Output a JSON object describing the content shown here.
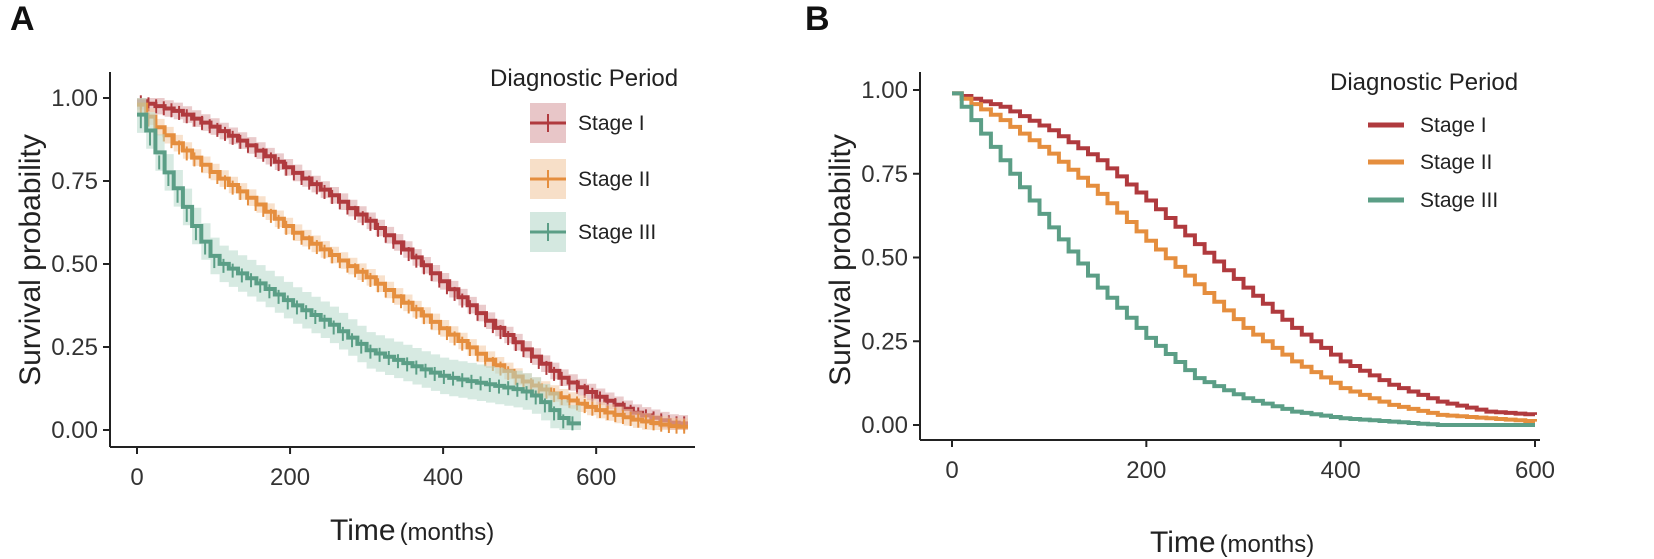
{
  "chart_data": [
    {
      "panel_label": "A",
      "type": "line",
      "subtype": "kaplan-meier-with-ci-and-censor-marks",
      "xlabel": "Time",
      "xlabel_unit": "(months)",
      "ylabel": "Survival probability",
      "xlim": [
        0,
        720
      ],
      "ylim": [
        0,
        1
      ],
      "xticks": [
        0,
        200,
        400,
        600
      ],
      "xtick_labels": [
        "0",
        "200",
        "400",
        "600"
      ],
      "yticks": [
        0,
        0.25,
        0.5,
        0.75,
        1.0
      ],
      "ytick_labels": [
        "0.00",
        "0.25",
        "0.50",
        "0.75",
        "1.00"
      ],
      "legend": {
        "title": "Diagnostic Period",
        "placement": "top-right"
      },
      "series": [
        {
          "name": "Stage I",
          "color": "#b03a3e",
          "band_color": "#d9a0a3",
          "end": 720,
          "x": [
            0,
            50,
            100,
            150,
            200,
            250,
            300,
            350,
            400,
            450,
            500,
            550,
            600,
            650,
            700,
            720
          ],
          "y": [
            0.99,
            0.96,
            0.91,
            0.85,
            0.78,
            0.71,
            0.63,
            0.54,
            0.44,
            0.34,
            0.25,
            0.16,
            0.1,
            0.05,
            0.02,
            0.02
          ]
        },
        {
          "name": "Stage II",
          "color": "#e58e3e",
          "band_color": "#f2c9a3",
          "end": 720,
          "x": [
            0,
            20,
            50,
            100,
            150,
            200,
            250,
            300,
            350,
            400,
            450,
            500,
            550,
            600,
            650,
            700,
            720
          ],
          "y": [
            0.98,
            0.92,
            0.86,
            0.77,
            0.69,
            0.6,
            0.53,
            0.46,
            0.38,
            0.3,
            0.22,
            0.15,
            0.1,
            0.06,
            0.03,
            0.01,
            0.01
          ]
        },
        {
          "name": "Stage III",
          "color": "#5b9e86",
          "band_color": "#b7d8cb",
          "end": 580,
          "x": [
            0,
            15,
            30,
            50,
            75,
            100,
            150,
            200,
            250,
            300,
            350,
            400,
            450,
            500,
            520,
            540,
            560,
            580
          ],
          "y": [
            0.95,
            0.89,
            0.8,
            0.72,
            0.6,
            0.51,
            0.45,
            0.38,
            0.32,
            0.24,
            0.2,
            0.16,
            0.14,
            0.12,
            0.1,
            0.06,
            0.02,
            0.02
          ]
        }
      ]
    },
    {
      "panel_label": "B",
      "type": "line",
      "subtype": "step-survival-curve",
      "xlabel": "Time",
      "xlabel_unit": "(months)",
      "ylabel": "Survival probability",
      "xlim": [
        0,
        600
      ],
      "ylim": [
        0,
        1
      ],
      "xticks": [
        0,
        200,
        400,
        600
      ],
      "xtick_labels": [
        "0",
        "200",
        "400",
        "600"
      ],
      "yticks": [
        0,
        0.25,
        0.5,
        0.75,
        1.0
      ],
      "ytick_labels": [
        "0.00",
        "0.25",
        "0.50",
        "0.75",
        "1.00"
      ],
      "legend": {
        "title": "Diagnostic Period",
        "placement": "top-right"
      },
      "series": [
        {
          "name": "Stage I",
          "color": "#b03a3e",
          "end": 600,
          "x": [
            0,
            50,
            100,
            150,
            200,
            250,
            300,
            350,
            400,
            450,
            500,
            550,
            600
          ],
          "y": [
            0.99,
            0.95,
            0.88,
            0.79,
            0.67,
            0.54,
            0.41,
            0.29,
            0.19,
            0.12,
            0.07,
            0.04,
            0.03
          ]
        },
        {
          "name": "Stage II",
          "color": "#e58e3e",
          "end": 600,
          "x": [
            0,
            50,
            100,
            150,
            200,
            250,
            300,
            350,
            400,
            450,
            500,
            550,
            600
          ],
          "y": [
            0.99,
            0.91,
            0.81,
            0.69,
            0.55,
            0.42,
            0.29,
            0.19,
            0.11,
            0.06,
            0.03,
            0.02,
            0.01
          ]
        },
        {
          "name": "Stage III",
          "color": "#5b9e86",
          "end": 600,
          "x": [
            0,
            50,
            100,
            150,
            200,
            250,
            300,
            350,
            400,
            450,
            500,
            550,
            600
          ],
          "y": [
            0.99,
            0.79,
            0.59,
            0.41,
            0.26,
            0.14,
            0.08,
            0.04,
            0.02,
            0.01,
            0.0,
            0.0,
            0.0
          ]
        }
      ]
    }
  ]
}
